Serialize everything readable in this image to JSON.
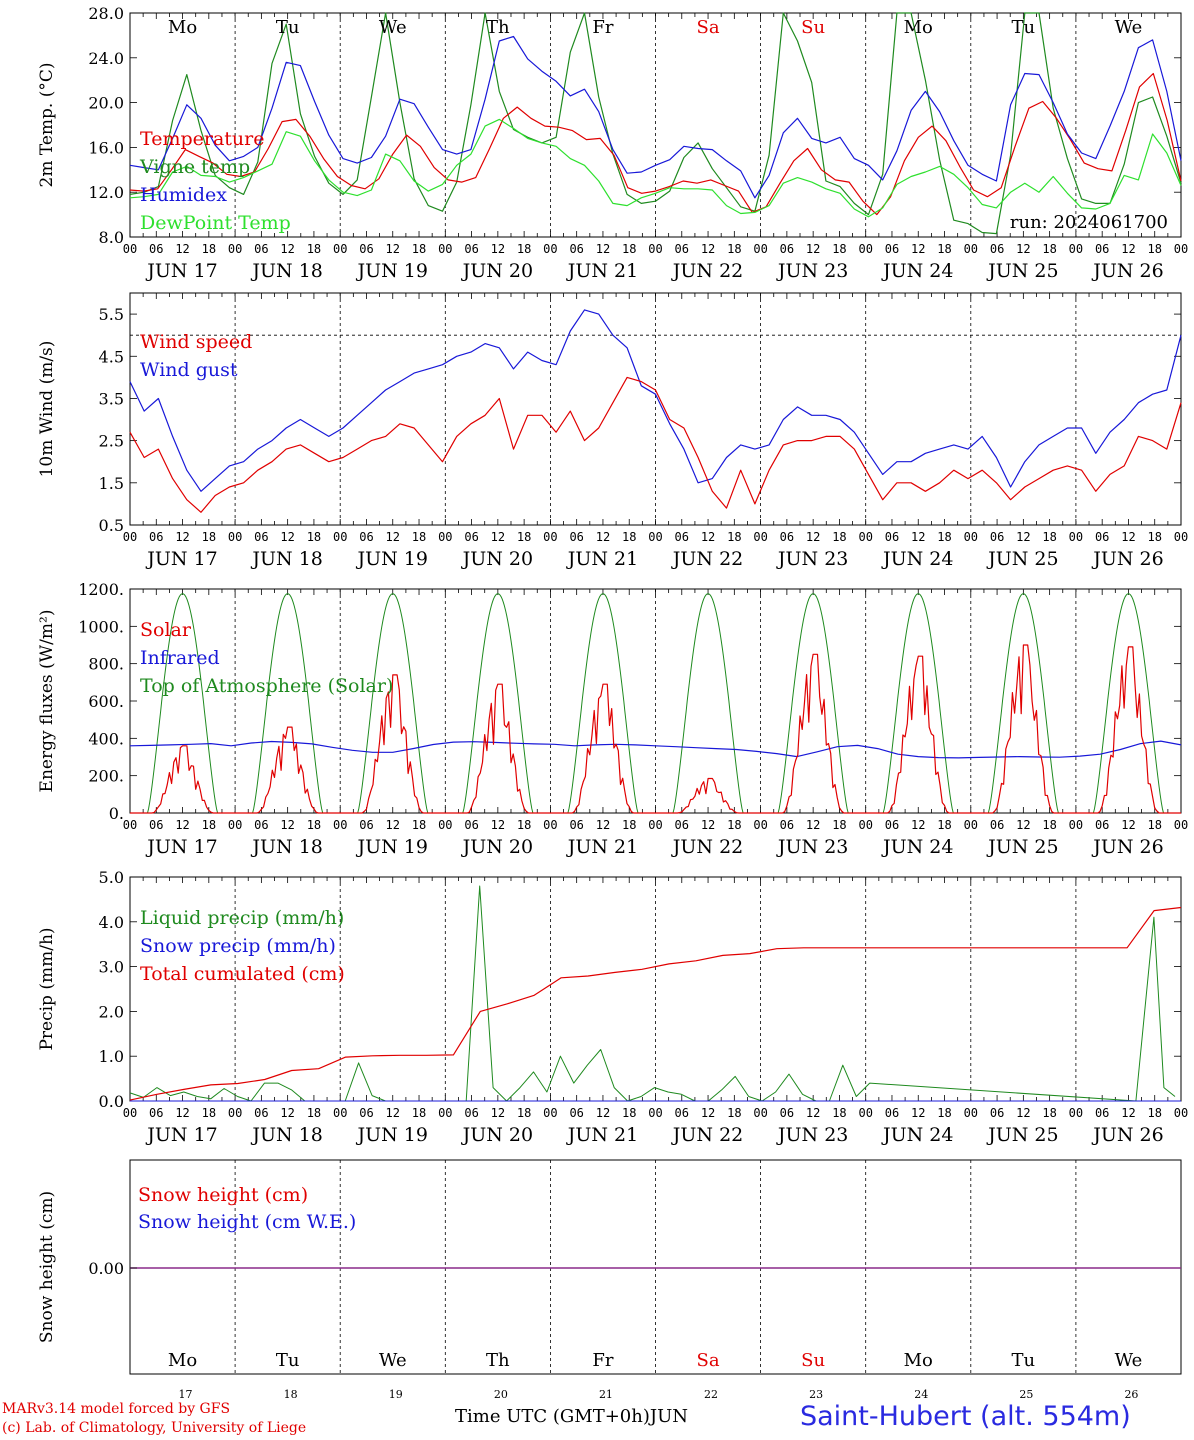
{
  "chart_data": [
    {
      "type": "line",
      "ylabel": "2m Temp. (°C)",
      "ylim": [
        8,
        28
      ],
      "yticks": [
        "8.0",
        "12.0",
        "16.0",
        "20.0",
        "24.0",
        "28.0"
      ],
      "weekdays": [
        "Mo",
        "Tu",
        "We",
        "Th",
        "Fr",
        "Sa",
        "Su",
        "Mo",
        "Tu",
        "We"
      ],
      "annotation": "run: 2024061700",
      "x_hours_step": 6,
      "series": [
        {
          "name": "Temperature",
          "color": "#e00000",
          "values": [
            12.2,
            12.1,
            12.3,
            14.0,
            15.8,
            15.2,
            14.6,
            13.6,
            13.4,
            13.8,
            15.9,
            18.3,
            18.5,
            17.0,
            15.0,
            13.4,
            12.6,
            12.3,
            13.2,
            15.4,
            17.1,
            16.1,
            14.2,
            13.1,
            12.9,
            13.3,
            15.9,
            18.6,
            19.6,
            18.6,
            17.9,
            17.8,
            17.5,
            16.7,
            16.8,
            15.3,
            12.4,
            11.9,
            12.1,
            12.5,
            13.0,
            12.8,
            13.1,
            12.6,
            12.1,
            10.2,
            10.7,
            12.8,
            14.8,
            15.9,
            14.0,
            13.1,
            12.9,
            11.2,
            10.0,
            11.6,
            14.8,
            16.9,
            17.9,
            16.6,
            14.3,
            12.2,
            11.6,
            12.4,
            16.1,
            19.5,
            20.1,
            18.6,
            16.7,
            14.6,
            14.1,
            13.9,
            17.5,
            21.4,
            22.6,
            18.4,
            13.0
          ]
        },
        {
          "name": "Vigne temp",
          "color": "#1f8a1f",
          "values": [
            11.8,
            12.0,
            12.5,
            18.4,
            22.5,
            17.5,
            13.5,
            12.4,
            11.8,
            14.7,
            23.5,
            27.0,
            19.0,
            15.2,
            12.8,
            11.8,
            13.1,
            20.5,
            28.0,
            20.0,
            13.2,
            10.8,
            10.3,
            12.9,
            19.8,
            28.0,
            21.0,
            17.6,
            16.9,
            16.4,
            16.9,
            24.5,
            28.0,
            20.5,
            15.4,
            11.8,
            11.0,
            11.2,
            12.1,
            15.1,
            16.4,
            14.1,
            12.4,
            10.7,
            10.3,
            15.3,
            28.0,
            25.5,
            21.8,
            13.0,
            12.5,
            11.0,
            10.0,
            13.6,
            28.0,
            28.0,
            22.0,
            14.9,
            9.5,
            9.2,
            8.4,
            8.3,
            15.3,
            28.0,
            28.0,
            19.5,
            15.0,
            11.4,
            11.0,
            11.0,
            14.5,
            20.0,
            20.5,
            17.0,
            12.8
          ]
        },
        {
          "name": "Humidex",
          "color": "#1818d8",
          "values": [
            14.4,
            14.2,
            14.0,
            16.8,
            19.8,
            18.6,
            16.2,
            14.8,
            15.2,
            16.0,
            19.5,
            23.6,
            23.3,
            20.1,
            17.1,
            15.0,
            14.6,
            15.1,
            17.0,
            20.3,
            19.9,
            17.8,
            15.8,
            15.4,
            15.8,
            20.3,
            25.5,
            25.9,
            23.9,
            22.8,
            21.9,
            20.6,
            21.2,
            19.2,
            15.8,
            13.7,
            13.8,
            14.4,
            14.9,
            16.1,
            15.9,
            15.8,
            14.8,
            13.9,
            11.5,
            13.5,
            17.3,
            18.6,
            16.8,
            16.4,
            16.9,
            15.0,
            14.4,
            13.1,
            15.7,
            19.3,
            21.0,
            19.2,
            16.6,
            14.4,
            13.6,
            13.0,
            19.8,
            22.6,
            22.5,
            20.0,
            17.2,
            15.5,
            15.0,
            17.9,
            21.0,
            24.9,
            25.6,
            21.0,
            14.8
          ]
        },
        {
          "name": "DewPoint Temp",
          "color": "#2ee02e",
          "values": [
            11.5,
            11.6,
            11.8,
            13.8,
            14.3,
            13.5,
            13.4,
            12.9,
            13.3,
            13.9,
            14.5,
            17.4,
            17.0,
            14.8,
            13.1,
            12.0,
            11.7,
            12.2,
            15.4,
            14.8,
            13.0,
            12.1,
            12.7,
            14.4,
            15.4,
            17.9,
            18.5,
            17.7,
            16.8,
            16.4,
            16.1,
            15.0,
            14.4,
            13.0,
            11.0,
            10.8,
            11.5,
            11.9,
            12.4,
            12.3,
            12.3,
            12.2,
            10.8,
            10.1,
            10.2,
            10.8,
            12.8,
            13.3,
            12.9,
            12.3,
            11.9,
            10.5,
            9.8,
            10.6,
            12.7,
            13.4,
            13.8,
            14.3,
            13.6,
            12.4,
            10.9,
            10.6,
            12.0,
            12.8,
            12.0,
            13.4,
            11.9,
            10.6,
            10.5,
            11.0,
            13.5,
            13.1,
            17.2,
            15.5,
            12.6
          ]
        }
      ]
    },
    {
      "type": "line",
      "ylabel": "10m Wind (m/s)",
      "ylim": [
        0.5,
        6.0
      ],
      "yticks": [
        "0.5",
        "1.5",
        "2.5",
        "3.5",
        "4.5",
        "5.5"
      ],
      "reference_line": 5.0,
      "x_hours_step": 6,
      "series": [
        {
          "name": "Wind speed",
          "color": "#e00000",
          "values": [
            2.7,
            2.1,
            2.3,
            1.6,
            1.1,
            0.8,
            1.2,
            1.4,
            1.5,
            1.8,
            2.0,
            2.3,
            2.4,
            2.2,
            2.0,
            2.1,
            2.3,
            2.5,
            2.6,
            2.9,
            2.8,
            2.4,
            2.0,
            2.6,
            2.9,
            3.1,
            3.5,
            2.3,
            3.1,
            3.1,
            2.7,
            3.2,
            2.5,
            2.8,
            3.4,
            4.0,
            3.9,
            3.7,
            3.0,
            2.8,
            2.1,
            1.3,
            0.9,
            1.8,
            1.0,
            1.8,
            2.4,
            2.5,
            2.5,
            2.6,
            2.6,
            2.3,
            1.7,
            1.1,
            1.5,
            1.5,
            1.3,
            1.5,
            1.8,
            1.6,
            1.8,
            1.5,
            1.1,
            1.4,
            1.6,
            1.8,
            1.9,
            1.8,
            1.3,
            1.7,
            1.9,
            2.6,
            2.5,
            2.3,
            3.4
          ]
        },
        {
          "name": "Wind gust",
          "color": "#1818d8",
          "values": [
            3.9,
            3.2,
            3.5,
            2.6,
            1.8,
            1.3,
            1.6,
            1.9,
            2.0,
            2.3,
            2.5,
            2.8,
            3.0,
            2.8,
            2.6,
            2.8,
            3.1,
            3.4,
            3.7,
            3.9,
            4.1,
            4.2,
            4.3,
            4.5,
            4.6,
            4.8,
            4.7,
            4.2,
            4.6,
            4.4,
            4.3,
            5.1,
            5.6,
            5.5,
            5.0,
            4.7,
            3.8,
            3.6,
            2.9,
            2.3,
            1.5,
            1.6,
            2.1,
            2.4,
            2.3,
            2.4,
            3.0,
            3.3,
            3.1,
            3.1,
            3.0,
            2.7,
            2.2,
            1.7,
            2.0,
            2.0,
            2.2,
            2.3,
            2.4,
            2.3,
            2.6,
            2.1,
            1.4,
            2.0,
            2.4,
            2.6,
            2.8,
            2.8,
            2.2,
            2.7,
            3.0,
            3.4,
            3.6,
            3.7,
            5.0
          ]
        }
      ]
    },
    {
      "type": "line",
      "ylabel": "Energy fluxes (W/m²)",
      "ylim": [
        0,
        1200
      ],
      "yticks": [
        "0.",
        "200.",
        "400.",
        "600.",
        "800.",
        "1000.",
        "1200."
      ],
      "x_hours_step": 6,
      "series": [
        {
          "name": "Solar",
          "color": "#e00000",
          "peaks": [
            360,
            460,
            740,
            690,
            690,
            185,
            850,
            840,
            900,
            890
          ]
        },
        {
          "name": "Infrared",
          "color": "#1818d8",
          "values": [
            360,
            362,
            365,
            368,
            372,
            360,
            375,
            383,
            378,
            370,
            352,
            336,
            325,
            325,
            345,
            367,
            380,
            382,
            378,
            374,
            370,
            368,
            360,
            365,
            368,
            365,
            360,
            355,
            350,
            345,
            340,
            330,
            318,
            302,
            328,
            355,
            362,
            345,
            315,
            302,
            297,
            295,
            298,
            300,
            302,
            300,
            299,
            305,
            315,
            340,
            372,
            385,
            365
          ]
        },
        {
          "name": "Top of Atmosphere (Solar)",
          "color": "#1f8a1f",
          "peak": 1175
        }
      ]
    },
    {
      "type": "line",
      "ylabel": "Precip (mm/h)",
      "ylim": [
        0,
        5
      ],
      "yticks": [
        "0.0",
        "1.0",
        "2.0",
        "3.0",
        "4.0",
        "5.0"
      ],
      "x_hours_step": 6,
      "series": [
        {
          "name": "Liquid precip (mm/h)",
          "color": "#1f8a1f",
          "values": [
            0.18,
            0.08,
            0.3,
            0.12,
            0.2,
            0.1,
            0.05,
            0.28,
            0.1,
            0.0,
            0.4,
            0.4,
            0.25,
            0.0,
            0.0,
            0.0,
            0.0,
            0.85,
            0.12,
            0.0,
            0.0,
            0.0,
            0.0,
            0.0,
            0.0,
            0.0,
            4.8,
            0.3,
            0.0,
            0.3,
            0.65,
            0.2,
            1.0,
            0.4,
            0.8,
            1.15,
            0.3,
            0.0,
            0.1,
            0.3,
            0.2,
            0.15,
            0.0,
            0.0,
            0.25,
            0.55,
            0.1,
            0.0,
            0.2,
            0.6,
            0.15,
            0.0,
            0.0,
            0.8,
            0.1,
            0.4
          ]
        },
        {
          "name": "Snow precip (mm/h)",
          "color": "#1818d8",
          "values": [
            0,
            0
          ]
        },
        {
          "name": "Total cumulated (cm)",
          "color": "#e00000",
          "values": [
            0.02,
            0.15,
            0.26,
            0.36,
            0.39,
            0.48,
            0.68,
            0.72,
            0.98,
            1.01,
            1.02,
            1.02,
            1.03,
            2.0,
            2.17,
            2.36,
            2.75,
            2.79,
            2.87,
            2.94,
            3.06,
            3.13,
            3.25,
            3.29,
            3.4,
            3.42,
            3.42,
            3.42,
            3.42,
            3.42,
            3.42,
            3.42,
            3.42,
            3.42,
            3.42,
            3.42,
            3.42,
            3.42,
            4.25,
            4.32
          ]
        }
      ]
    },
    {
      "type": "line",
      "ylabel": "Snow height (cm)",
      "yticks": [
        "0.00"
      ],
      "series": [
        {
          "name": "Snow height (cm)",
          "color": "#e00000",
          "values": [
            0,
            0
          ]
        },
        {
          "name": "Snow height (cm W.E.)",
          "color": "#1818d8",
          "values": [
            0,
            0
          ]
        }
      ]
    }
  ],
  "x_axis": {
    "hour_labels": [
      "00",
      "06",
      "12",
      "18"
    ],
    "day_labels": [
      "JUN 17",
      "JUN 18",
      "JUN 19",
      "JUN 20",
      "JUN 21",
      "JUN 22",
      "JUN 23",
      "JUN 24",
      "JUN 25",
      "JUN 26"
    ],
    "day_numbers": [
      "17",
      "18",
      "19",
      "20",
      "21",
      "22",
      "23",
      "24",
      "25",
      "26"
    ],
    "weekdays": [
      "Mo",
      "Tu",
      "We",
      "Th",
      "Fr",
      "Sa",
      "Su",
      "Mo",
      "Tu",
      "We"
    ],
    "weekend_color": "#e00000",
    "xlabel": "Time UTC (GMT+0h)",
    "month": "JUN"
  },
  "footer": {
    "model_line": "MARv3.14 model forced by GFS",
    "copyright_line": "(c) Lab. of Climatology, University of Liege",
    "station": "Saint-Hubert (alt. 554m)"
  }
}
